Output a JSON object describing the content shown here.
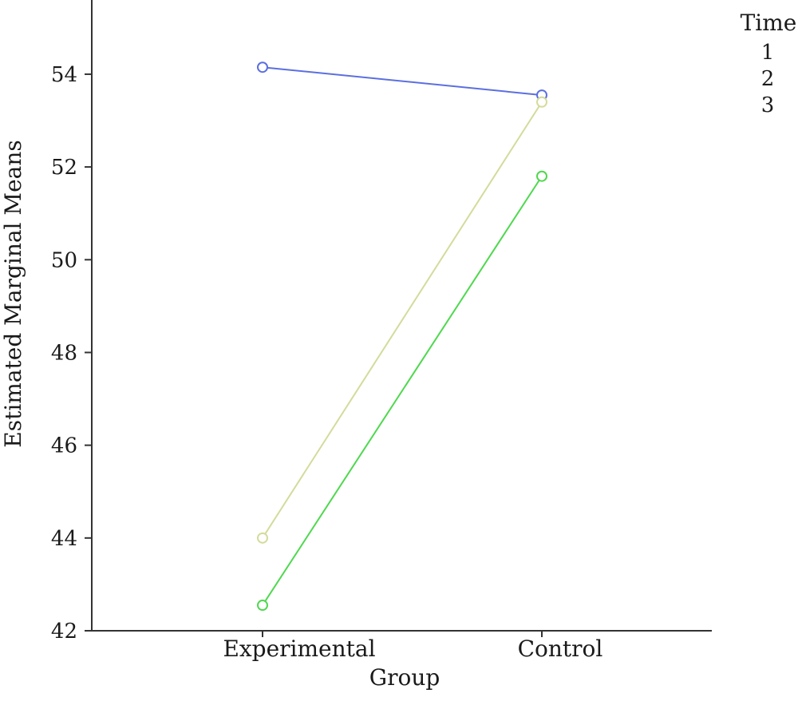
{
  "chart_data": {
    "type": "line",
    "xlabel": "Group",
    "ylabel": "Estimated Marginal Means",
    "categories": [
      "Experimental",
      "Control"
    ],
    "ylim": [
      42,
      55.6
    ],
    "yticks": [
      42,
      44,
      46,
      48,
      50,
      52,
      54
    ],
    "grid": false,
    "legend": {
      "title": "Time",
      "placement": "top-right",
      "entries": [
        "1",
        "2",
        "3"
      ]
    },
    "series": [
      {
        "name": "1",
        "values": [
          54.15,
          53.55
        ],
        "color": "#5b6fe0"
      },
      {
        "name": "2",
        "values": [
          44.0,
          53.4
        ],
        "color": "#d4db9b"
      },
      {
        "name": "3",
        "values": [
          42.55,
          51.8
        ],
        "color": "#4fd84f"
      }
    ]
  }
}
